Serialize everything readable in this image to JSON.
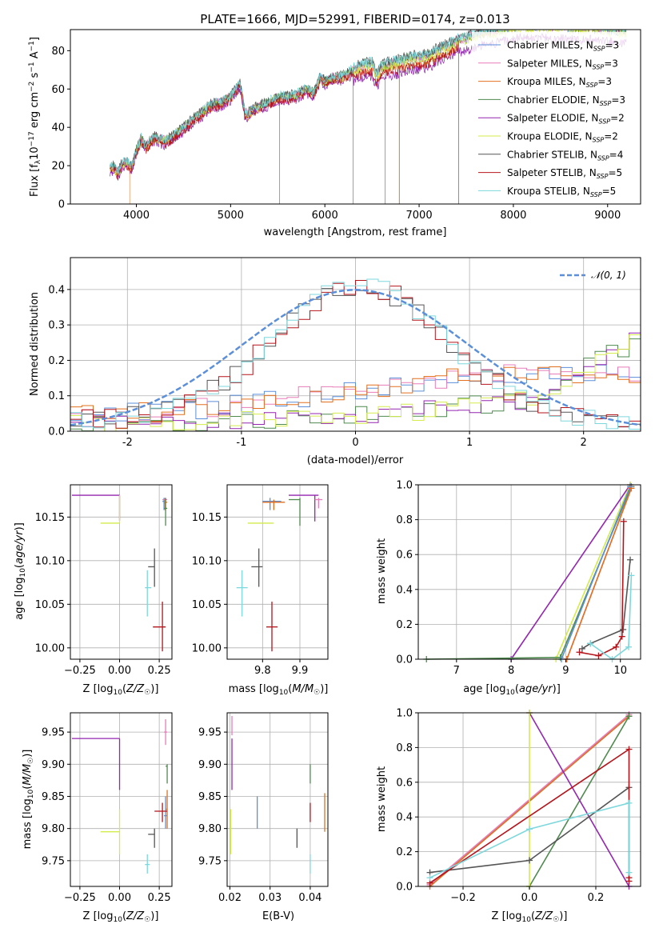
{
  "colors": {
    "chabrier_miles": "#5b8fd9",
    "salpeter_miles": "#e87cb8",
    "kroupa_miles": "#e2701f",
    "chabrier_elodie": "#4f8a4f",
    "salpeter_elodie": "#9426b0",
    "kroupa_elodie": "#d4ec4c",
    "chabrier_stelib": "#555555",
    "salpeter_stelib": "#b5141b",
    "kroupa_stelib": "#7dd8dc",
    "normal": "#5b8fd9",
    "grid": "#b0b0b0"
  },
  "chart_data": [
    {
      "id": "spectrum",
      "type": "line",
      "title": "PLATE=1666, MJD=52991, FIBERID=0174, z=0.013",
      "xlabel": "wavelength [Angstrom, rest frame]",
      "ylabel": "Flux [f_λ 10^-17 erg cm^-2 s^-1 A^-1]",
      "xlim": [
        3300,
        9350
      ],
      "ylim": [
        0,
        91
      ],
      "xticks": [
        4000,
        5000,
        6000,
        7000,
        8000,
        9000
      ],
      "yticks": [
        0,
        20,
        40,
        60,
        80
      ],
      "grid": false,
      "legend_position": "right",
      "series": [
        {
          "name": "Chabrier MILES, N_SSP=3",
          "key": "chabrier_miles"
        },
        {
          "name": "Salpeter MILES, N_SSP=3",
          "key": "salpeter_miles"
        },
        {
          "name": "Kroupa MILES, N_SSP=3",
          "key": "kroupa_miles"
        },
        {
          "name": "Chabrier ELODIE, N_SSP=3",
          "key": "chabrier_elodie"
        },
        {
          "name": "Salpeter ELODIE, N_SSP=2",
          "key": "salpeter_elodie"
        },
        {
          "name": "Kroupa ELODIE, N_SSP=2",
          "key": "kroupa_elodie"
        },
        {
          "name": "Chabrier STELIB, N_SSP=4",
          "key": "chabrier_stelib"
        },
        {
          "name": "Salpeter STELIB, N_SSP=5",
          "key": "salpeter_stelib"
        },
        {
          "name": "Kroupa STELIB, N_SSP=5",
          "key": "kroupa_stelib"
        }
      ],
      "envelope": {
        "x": [
          3700,
          3760,
          3800,
          3850,
          3900,
          3950,
          4000,
          4050,
          4100,
          4150,
          4200,
          4300,
          4400,
          4500,
          4600,
          4700,
          4800,
          4900,
          5000,
          5100,
          5150,
          5180,
          5250,
          5400,
          5500,
          5600,
          5700,
          5800,
          5880,
          5950,
          6000,
          6100,
          6200,
          6300,
          6400,
          6500,
          6550,
          6600,
          6700,
          6800,
          6900,
          7000,
          7100,
          7200,
          7300,
          7400,
          7500,
          7600,
          7700,
          7800,
          7900,
          8000,
          8100,
          8200,
          8300,
          8400,
          8500,
          8600,
          8700,
          8800,
          8900,
          9000,
          9100,
          9200
        ],
        "y": [
          18,
          20,
          16,
          21,
          22,
          19,
          28,
          34,
          30,
          33,
          35,
          33,
          36,
          40,
          44,
          48,
          52,
          53,
          56,
          63,
          48,
          47,
          50,
          53,
          56,
          56,
          57,
          60,
          58,
          66,
          64,
          66,
          67,
          70,
          72,
          73,
          67,
          71,
          73,
          74,
          76,
          76,
          77,
          80,
          82,
          85,
          86,
          88,
          89,
          90,
          91,
          92,
          93,
          92,
          93,
          92,
          93,
          92,
          91,
          92,
          91,
          91,
          90,
          90
        ]
      }
    },
    {
      "id": "residuals",
      "type": "line",
      "xlabel": "(data-model)/error",
      "ylabel": "Normed distribution",
      "xlim": [
        -2.5,
        2.5
      ],
      "ylim": [
        0,
        0.49
      ],
      "xticks": [
        -2,
        -1,
        0,
        1,
        2
      ],
      "yticks": [
        0.0,
        0.1,
        0.2,
        0.3,
        0.4
      ],
      "grid": true,
      "legend_position": "top-right",
      "legend_label": "𝒩(0, 1)",
      "bin_width": 0.1
    },
    {
      "id": "age_vs_Z",
      "type": "scatter",
      "xlabel": "Z [log10(Z/Z☉)]",
      "ylabel": "age  [log10(age/yr)]",
      "xlim": [
        -0.31,
        0.33
      ],
      "ylim": [
        9.987,
        10.187
      ],
      "xticks": [
        -0.25,
        0.0,
        0.25
      ],
      "xtick_labels": [
        "−0.25",
        "0.00",
        "0.25"
      ],
      "yticks": [
        10.0,
        10.05,
        10.1,
        10.15
      ],
      "ytick_labels": [
        "10.00",
        "10.05",
        "10.10",
        "10.15"
      ],
      "grid": true,
      "points": [
        {
          "key": "salpeter_elodie",
          "x": -0.3,
          "y": 10.175,
          "x0": -0.3,
          "x1": 0.0,
          "y0": 10.175,
          "y1": 10.175,
          "ex0": 0.0,
          "ey0": 10.175,
          "ey1": 10.146
        },
        {
          "key": "kroupa_elodie",
          "x": 0.0,
          "y": 10.143,
          "x0": -0.12,
          "x1": 0.0,
          "y0": 10.143,
          "y1": 10.143,
          "ex0": 0.0,
          "ey0": 10.143,
          "ey1": 10.175
        },
        {
          "key": "chabrier_miles",
          "x": 0.28,
          "y": 10.168,
          "x0": 0.27,
          "x1": 0.29,
          "y0": 10.158,
          "y1": 10.172
        },
        {
          "key": "salpeter_miles",
          "x": 0.285,
          "y": 10.17,
          "x0": 0.27,
          "x1": 0.3,
          "y0": 10.165,
          "y1": 10.172
        },
        {
          "key": "kroupa_miles",
          "x": 0.287,
          "y": 10.167,
          "x0": 0.28,
          "x1": 0.3,
          "y0": 10.158,
          "y1": 10.17
        },
        {
          "key": "chabrier_elodie",
          "x": 0.29,
          "y": 10.16,
          "x0": 0.28,
          "x1": 0.3,
          "y0": 10.14,
          "y1": 10.172
        },
        {
          "key": "chabrier_stelib",
          "x": 0.22,
          "y": 10.093,
          "x0": 0.18,
          "x1": 0.22,
          "y0": 10.07,
          "y1": 10.114
        },
        {
          "key": "kroupa_stelib",
          "x": 0.175,
          "y": 10.069,
          "x0": 0.16,
          "x1": 0.2,
          "y0": 10.036,
          "y1": 10.089
        },
        {
          "key": "salpeter_stelib",
          "x": 0.27,
          "y": 10.024,
          "x0": 0.21,
          "x1": 0.29,
          "y0": 9.996,
          "y1": 10.053
        }
      ]
    },
    {
      "id": "age_vs_mass",
      "type": "scatter",
      "xlabel": "mass [log10(M/M☉)]",
      "xlim": [
        9.705,
        9.975
      ],
      "ylim": [
        9.987,
        10.187
      ],
      "xticks": [
        9.8,
        9.9
      ],
      "xtick_labels": [
        "9.8",
        "9.9"
      ],
      "yticks": [
        10.0,
        10.05,
        10.1,
        10.15
      ],
      "ytick_labels": [
        "10.00",
        "10.05",
        "10.10",
        "10.15"
      ],
      "grid": true,
      "points": [
        {
          "key": "kroupa_elodie",
          "x": 9.795,
          "y": 10.143,
          "x0": 9.76,
          "x1": 9.83,
          "y0": 10.143,
          "y1": 10.143
        },
        {
          "key": "chabrier_miles",
          "x": 9.82,
          "y": 10.168,
          "x0": 9.8,
          "x1": 9.85,
          "y0": 10.158,
          "y1": 10.172
        },
        {
          "key": "kroupa_miles",
          "x": 9.83,
          "y": 10.167,
          "x0": 9.8,
          "x1": 9.86,
          "y0": 10.158,
          "y1": 10.17
        },
        {
          "key": "chabrier_elodie",
          "x": 9.9,
          "y": 10.17,
          "x0": 9.87,
          "x1": 9.9,
          "y0": 10.14,
          "y1": 10.172
        },
        {
          "key": "salpeter_elodie",
          "x": 9.94,
          "y": 10.175,
          "x0": 9.87,
          "x1": 9.95,
          "y0": 10.145,
          "y1": 10.175
        },
        {
          "key": "salpeter_miles",
          "x": 9.95,
          "y": 10.17,
          "x0": 9.94,
          "x1": 9.96,
          "y0": 10.16,
          "y1": 10.172
        },
        {
          "key": "chabrier_stelib",
          "x": 9.79,
          "y": 10.093,
          "x0": 9.77,
          "x1": 9.8,
          "y0": 10.07,
          "y1": 10.114
        },
        {
          "key": "kroupa_stelib",
          "x": 9.745,
          "y": 10.069,
          "x0": 9.73,
          "x1": 9.76,
          "y0": 10.036,
          "y1": 10.089
        },
        {
          "key": "salpeter_stelib",
          "x": 9.825,
          "y": 10.024,
          "x0": 9.81,
          "x1": 9.84,
          "y0": 9.996,
          "y1": 10.053
        }
      ]
    },
    {
      "id": "weight_vs_age",
      "type": "line",
      "xlabel": "age  [log10(age/yr)]",
      "ylabel": "mass weight",
      "xlim": [
        6.3,
        10.37
      ],
      "ylim": [
        0,
        1.0
      ],
      "xticks": [
        7,
        8,
        9,
        10
      ],
      "yticks": [
        0.0,
        0.2,
        0.4,
        0.6,
        0.8,
        1.0
      ],
      "ytick_labels": [
        "0.0",
        "0.2",
        "0.4",
        "0.6",
        "0.8",
        "1.0"
      ],
      "grid": true,
      "series": [
        {
          "key": "salpeter_elodie",
          "x": [
            8.0,
            10.18
          ],
          "y": [
            0.0,
            1.0
          ]
        },
        {
          "key": "kroupa_elodie",
          "x": [
            8.82,
            10.18
          ],
          "y": [
            0.0,
            1.0
          ]
        },
        {
          "key": "chabrier_elodie",
          "x": [
            6.45,
            8.9,
            10.2
          ],
          "y": [
            0.0,
            0.01,
            0.99
          ]
        },
        {
          "key": "chabrier_miles",
          "x": [
            8.92,
            10.18
          ],
          "y": [
            0.0,
            0.99
          ]
        },
        {
          "key": "salpeter_miles",
          "x": [
            9.02,
            10.2
          ],
          "y": [
            0.0,
            0.98
          ]
        },
        {
          "key": "kroupa_miles",
          "x": [
            9.02,
            10.2
          ],
          "y": [
            0.0,
            0.98
          ]
        },
        {
          "key": "chabrier_stelib",
          "x": [
            9.3,
            9.45,
            10.05,
            10.18
          ],
          "y": [
            0.06,
            0.09,
            0.17,
            0.57
          ]
        },
        {
          "key": "salpeter_stelib",
          "x": [
            9.25,
            9.6,
            9.92,
            10.03,
            10.06
          ],
          "y": [
            0.04,
            0.02,
            0.07,
            0.13,
            0.79
          ]
        },
        {
          "key": "kroupa_stelib",
          "x": [
            9.45,
            9.85,
            10.15,
            10.2
          ],
          "y": [
            0.09,
            0.0,
            0.07,
            0.48
          ]
        }
      ]
    },
    {
      "id": "mass_vs_Z",
      "type": "scatter",
      "xlabel": "Z [log10(Z/Z☉)]",
      "ylabel": "mass [log10(M/M☉)]",
      "xlim": [
        -0.31,
        0.33
      ],
      "ylim": [
        9.71,
        9.98
      ],
      "xticks": [
        -0.25,
        0.0,
        0.25
      ],
      "xtick_labels": [
        "−0.25",
        "0.00",
        "0.25"
      ],
      "yticks": [
        9.75,
        9.8,
        9.85,
        9.9,
        9.95
      ],
      "ytick_labels": [
        "9.75",
        "9.80",
        "9.85",
        "9.90",
        "9.95"
      ],
      "grid": true,
      "points": [
        {
          "key": "salpeter_elodie",
          "x": -0.3,
          "y": 9.94,
          "x0": -0.3,
          "x1": 0.0,
          "y0": 9.94,
          "y1": 9.94,
          "ex0": 0.0,
          "ey0": 9.94,
          "ey1": 9.86
        },
        {
          "key": "kroupa_elodie",
          "x": 0.0,
          "y": 9.795,
          "x0": -0.12,
          "x1": 0.0,
          "y0": 9.795,
          "y1": 9.795,
          "ex0": 0.0,
          "ey0": 9.76,
          "ey1": 9.83
        },
        {
          "key": "salpeter_miles",
          "x": 0.29,
          "y": 9.95,
          "x0": 0.28,
          "x1": 0.3,
          "y0": 9.93,
          "y1": 9.97
        },
        {
          "key": "chabrier_elodie",
          "x": 0.3,
          "y": 9.897,
          "x0": 0.29,
          "x1": 0.3,
          "y0": 9.87,
          "y1": 9.9
        },
        {
          "key": "chabrier_miles",
          "x": 0.29,
          "y": 9.82,
          "x0": 0.28,
          "x1": 0.3,
          "y0": 9.8,
          "y1": 9.85
        },
        {
          "key": "kroupa_miles",
          "x": 0.3,
          "y": 9.83,
          "x0": 0.29,
          "x1": 0.3,
          "y0": 9.8,
          "y1": 9.86
        },
        {
          "key": "salpeter_stelib",
          "x": 0.27,
          "y": 9.827,
          "x0": 0.22,
          "x1": 0.3,
          "y0": 9.81,
          "y1": 9.84
        },
        {
          "key": "chabrier_stelib",
          "x": 0.22,
          "y": 9.791,
          "x0": 0.18,
          "x1": 0.22,
          "y0": 9.77,
          "y1": 9.8
        },
        {
          "key": "kroupa_stelib",
          "x": 0.175,
          "y": 9.744,
          "x0": 0.16,
          "x1": 0.19,
          "y0": 9.73,
          "y1": 9.76
        }
      ]
    },
    {
      "id": "mass_vs_EBV",
      "type": "scatter",
      "xlabel": "E(B-V)",
      "xlim": [
        0.0193,
        0.0444
      ],
      "ylim": [
        9.71,
        9.98
      ],
      "xticks": [
        0.02,
        0.03,
        0.04
      ],
      "xtick_labels": [
        "0.02",
        "0.03",
        "0.04"
      ],
      "yticks": [
        9.75,
        9.8,
        9.85,
        9.9,
        9.95
      ],
      "ytick_labels": [
        "9.75",
        "9.80",
        "9.85",
        "9.90",
        "9.95"
      ],
      "grid": true,
      "points": [
        {
          "key": "salpeter_miles",
          "x": 0.0205,
          "y0": 9.945,
          "y1": 9.975
        },
        {
          "key": "salpeter_elodie",
          "x": 0.0205,
          "y0": 9.86,
          "y1": 9.94
        },
        {
          "key": "kroupa_elodie",
          "x": 0.0202,
          "y0": 9.76,
          "y1": 9.83
        },
        {
          "key": "chabrier_miles",
          "x": 0.0268,
          "y0": 9.8,
          "y1": 9.85
        },
        {
          "key": "chabrier_stelib",
          "x": 0.0367,
          "y0": 9.77,
          "y1": 9.8
        },
        {
          "key": "chabrier_elodie",
          "x": 0.04,
          "y0": 9.87,
          "y1": 9.9
        },
        {
          "key": "salpeter_stelib",
          "x": 0.04,
          "y0": 9.81,
          "y1": 9.84
        },
        {
          "key": "kroupa_stelib",
          "x": 0.04,
          "y0": 9.73,
          "y1": 9.76
        },
        {
          "key": "kroupa_miles",
          "x": 0.0436,
          "y0": 9.795,
          "y1": 9.855
        }
      ]
    },
    {
      "id": "weight_vs_Z",
      "type": "line",
      "xlabel": "Z [log10(Z/Z☉)]",
      "ylabel": "mass weight",
      "xlim": [
        -0.335,
        0.335
      ],
      "ylim": [
        0,
        1.0
      ],
      "xticks": [
        -0.2,
        0.0,
        0.2
      ],
      "xtick_labels": [
        "−0.2",
        "0.0",
        "0.2"
      ],
      "yticks": [
        0.0,
        0.2,
        0.4,
        0.6,
        0.8,
        1.0
      ],
      "ytick_labels": [
        "0.0",
        "0.2",
        "0.4",
        "0.6",
        "0.8",
        "1.0"
      ],
      "grid": true,
      "series": [
        {
          "key": "chabrier_miles",
          "x": [
            -0.3,
            0.3
          ],
          "y": [
            0.01,
            0.98
          ]
        },
        {
          "key": "salpeter_miles",
          "x": [
            -0.3,
            0.3
          ],
          "y": [
            0.01,
            0.99
          ]
        },
        {
          "key": "kroupa_miles",
          "x": [
            -0.3,
            0.3
          ],
          "y": [
            0.0,
            0.98
          ]
        },
        {
          "key": "chabrier_elodie",
          "x": [
            0.0,
            0.3
          ],
          "y": [
            0.0,
            0.98
          ]
        },
        {
          "key": "salpeter_elodie",
          "x": [
            0.0,
            0.3
          ],
          "y": [
            1.0,
            0.0
          ]
        },
        {
          "key": "kroupa_elodie",
          "x": [
            0.0,
            0.0
          ],
          "y": [
            0.0,
            1.0
          ]
        },
        {
          "key": "chabrier_stelib",
          "x": [
            -0.3,
            0.0,
            0.3
          ],
          "y": [
            0.08,
            0.15,
            0.57
          ]
        },
        {
          "key": "salpeter_stelib",
          "x": [
            -0.3,
            0.3,
            0.3,
            0.3
          ],
          "y": [
            0.02,
            0.79,
            0.03,
            0.05
          ]
        },
        {
          "key": "kroupa_stelib",
          "x": [
            -0.3,
            0.0,
            0.3,
            0.3
          ],
          "y": [
            0.05,
            0.33,
            0.48,
            0.08
          ]
        }
      ]
    }
  ]
}
